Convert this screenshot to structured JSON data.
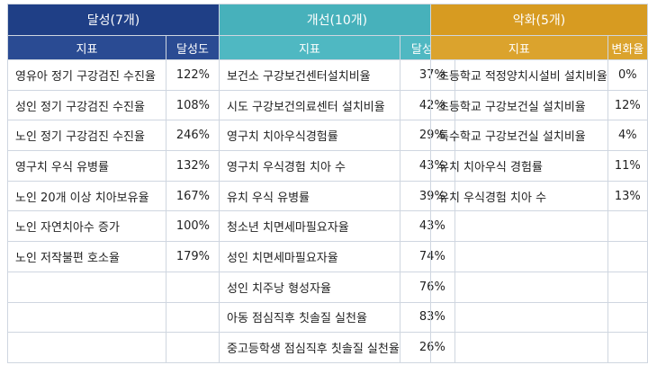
{
  "groups": {
    "achieved": {
      "title": "달성(7개)",
      "col_name": "지표",
      "col_value": "달성도",
      "color": "#1f3f86",
      "rows": [
        {
          "name": "영유아 정기 구강검진 수진율",
          "value": "122%"
        },
        {
          "name": "성인 정기 구강검진 수진율",
          "value": "108%"
        },
        {
          "name": "노인 정기 구강검진 수진율",
          "value": "246%"
        },
        {
          "name": "영구치 우식 유병률",
          "value": "132%"
        },
        {
          "name": "노인 20개 이상 치아보유율",
          "value": "167%"
        },
        {
          "name": "노인 자연치아수 증가",
          "value": "100%"
        },
        {
          "name": "노인 저작불편 호소율",
          "value": "179%"
        }
      ]
    },
    "improved": {
      "title": "개선(10개)",
      "col_name": "지표",
      "col_value": "달성도",
      "color": "#47b1bb",
      "rows": [
        {
          "name": "보건소 구강보건센터설치비율",
          "value": "37%"
        },
        {
          "name": "시도 구강보건의료센터 설치비율",
          "value": "42%"
        },
        {
          "name": "영구치 치아우식경험률",
          "value": "29%"
        },
        {
          "name": "영구치 우식경험 치아 수",
          "value": "43%"
        },
        {
          "name": "유치 우식 유병률",
          "value": "39%"
        },
        {
          "name": "청소년 치면세마필요자율",
          "value": "43%"
        },
        {
          "name": "성인 치면세마필요자율",
          "value": "74%"
        },
        {
          "name": "성인 치주낭 형성자율",
          "value": "76%"
        },
        {
          "name": "아동 점심직후 칫솔질 실천율",
          "value": "83%"
        },
        {
          "name": "중고등학생 점심직후 칫솔질 실천율",
          "value": "26%"
        }
      ]
    },
    "worsened": {
      "title": "악화(5개)",
      "col_name": "지표",
      "col_value": "변화율",
      "color": "#d79b21",
      "rows": [
        {
          "name": "초등학교 적정양치시설비 설치비율",
          "value": "0%"
        },
        {
          "name": "초등학교 구강보건실 설치비율",
          "value": "12%"
        },
        {
          "name": "특수학교 구강보건실 설치비율",
          "value": "4%"
        },
        {
          "name": "유치 치아우식 경험률",
          "value": "11%"
        },
        {
          "name": "유치 우식경험 치아 수",
          "value": "13%"
        }
      ]
    }
  }
}
